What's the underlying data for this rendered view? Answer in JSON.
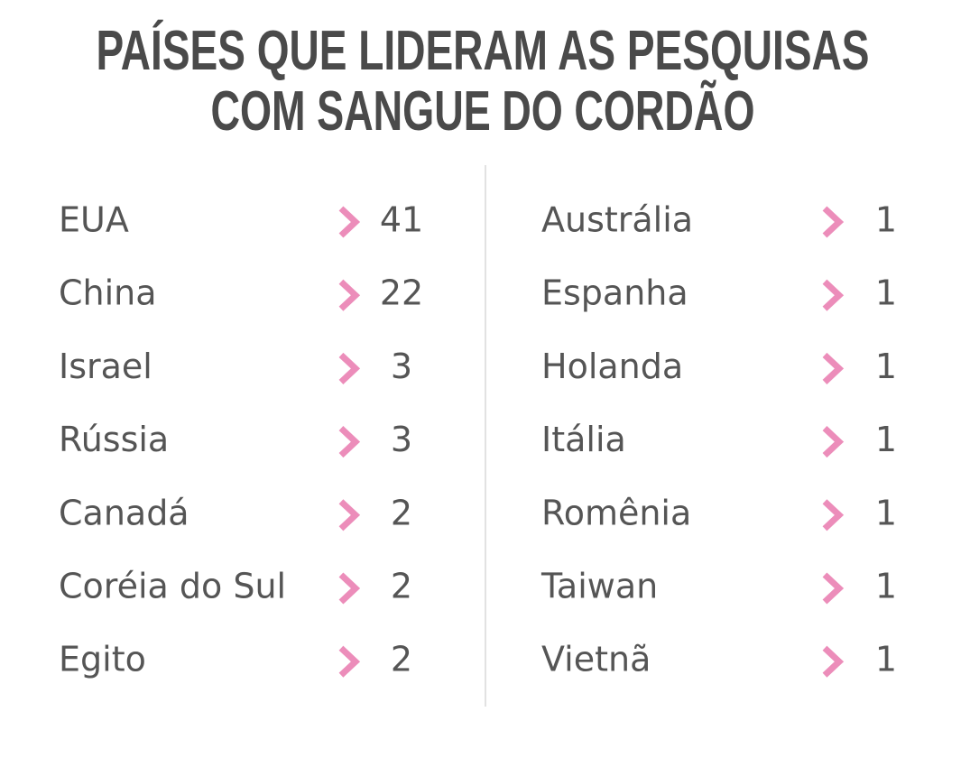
{
  "header": {
    "title": [
      "PAÍSES QUE LIDERAM AS PESQUISAS",
      "COM SANGUE DO CORDÃO"
    ]
  },
  "table": {
    "columns": [
      {
        "rows": [
          [
            "EUA",
            41
          ],
          [
            "China",
            22
          ],
          [
            "Israel",
            3
          ],
          [
            "Rússia",
            3
          ],
          [
            "Canadá",
            2
          ],
          [
            "Coréia do Sul",
            2
          ],
          [
            "Egito",
            2
          ]
        ]
      },
      {
        "rows": [
          [
            "Austrália",
            1
          ],
          [
            "Espanha",
            1
          ],
          [
            "Holanda",
            1
          ],
          [
            "Itália",
            1
          ],
          [
            "Romênia",
            1
          ],
          [
            "Taiwan",
            1
          ],
          [
            "Vietnã",
            1
          ]
        ]
      }
    ]
  }
}
